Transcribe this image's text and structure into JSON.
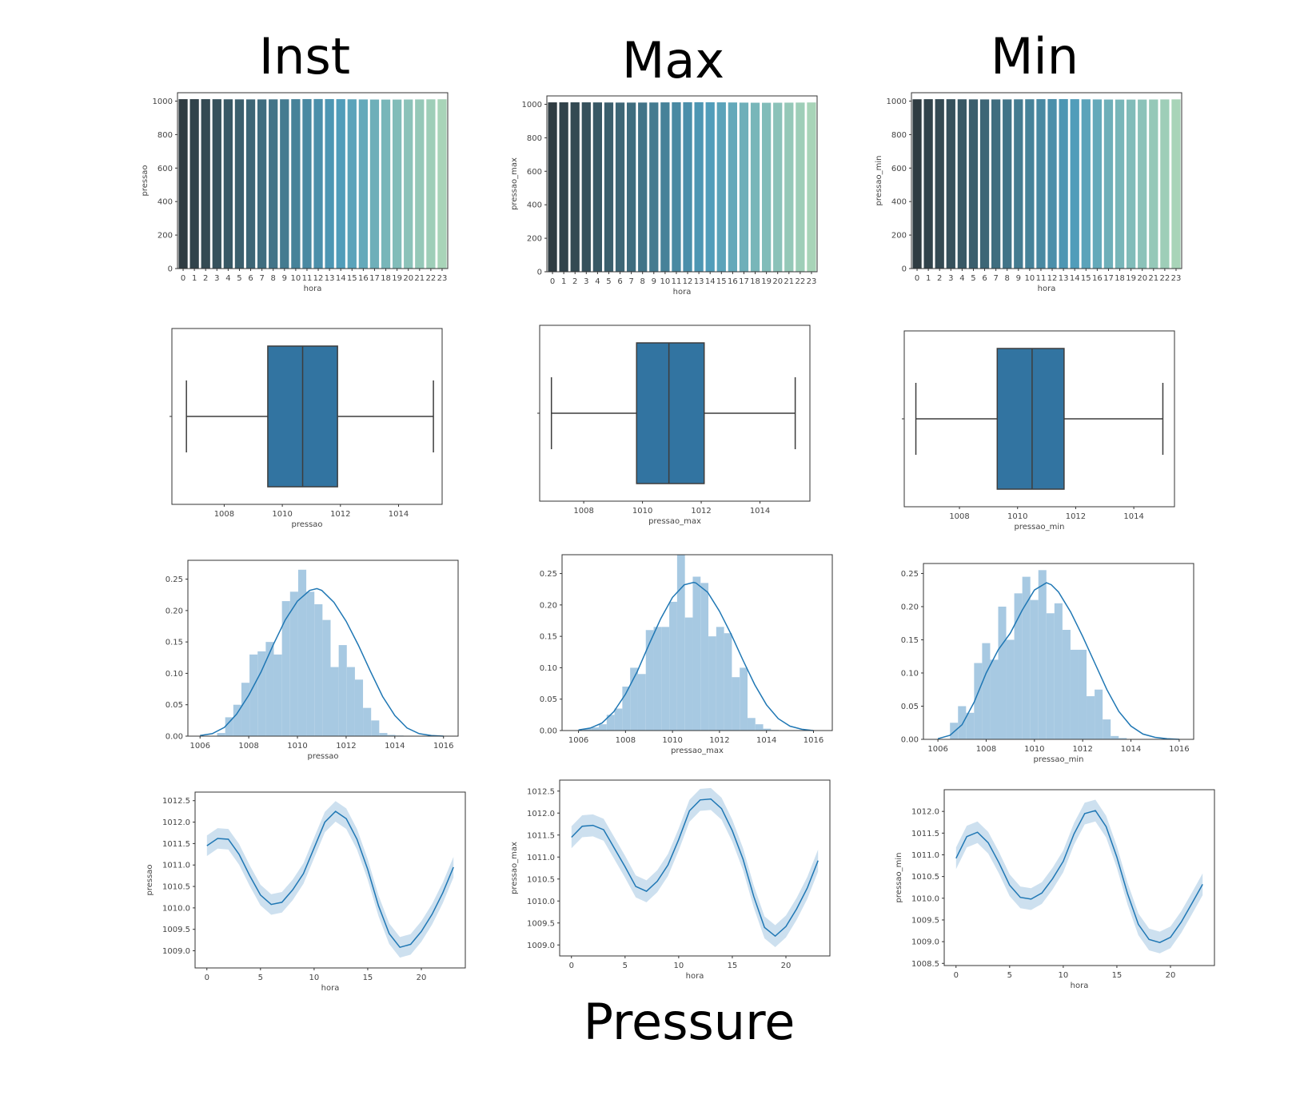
{
  "figure": {
    "column_titles": [
      "Inst",
      "Max",
      "Min"
    ],
    "footer_title": "Pressure"
  },
  "colors": {
    "palette_start": "#2f3c42",
    "palette_mid": "#4f9cba",
    "palette_end": "#a8d4b8",
    "box_fill": "#3274a1",
    "line": "#1f77b4",
    "hist_fill": "#a7c9e2",
    "ci_band": "#bcd5ea",
    "axis": "#333333",
    "tick_text": "#444444"
  },
  "chart_data": [
    {
      "id": "bar-inst",
      "type": "bar",
      "xlabel": "hora",
      "ylabel": "pressao",
      "ylim": [
        0,
        1050
      ],
      "yticks": [
        0,
        200,
        400,
        600,
        800,
        1000
      ],
      "categories": [
        "0",
        "1",
        "2",
        "3",
        "4",
        "5",
        "6",
        "7",
        "8",
        "9",
        "10",
        "11",
        "12",
        "13",
        "14",
        "15",
        "16",
        "17",
        "18",
        "19",
        "20",
        "21",
        "22",
        "23"
      ],
      "values": [
        1011.5,
        1011.6,
        1011.6,
        1011.3,
        1010.7,
        1010.3,
        1010.1,
        1010.1,
        1010.4,
        1010.8,
        1011.5,
        1012.0,
        1012.2,
        1012.0,
        1011.5,
        1010.7,
        1009.9,
        1009.3,
        1009.1,
        1009.1,
        1009.5,
        1009.9,
        1010.4,
        1010.9
      ]
    },
    {
      "id": "bar-max",
      "type": "bar",
      "xlabel": "hora",
      "ylabel": "pressao_max",
      "ylim": [
        0,
        1050
      ],
      "yticks": [
        0,
        200,
        400,
        600,
        800,
        1000
      ],
      "categories": [
        "0",
        "1",
        "2",
        "3",
        "4",
        "5",
        "6",
        "7",
        "8",
        "9",
        "10",
        "11",
        "12",
        "13",
        "14",
        "15",
        "16",
        "17",
        "18",
        "19",
        "20",
        "21",
        "22",
        "23"
      ],
      "values": [
        1011.5,
        1011.7,
        1011.7,
        1011.6,
        1011.2,
        1010.7,
        1010.3,
        1010.2,
        1010.4,
        1010.8,
        1011.4,
        1012.0,
        1012.3,
        1012.3,
        1012.1,
        1011.6,
        1010.9,
        1010.0,
        1009.4,
        1009.2,
        1009.4,
        1009.8,
        1010.3,
        1010.9
      ]
    },
    {
      "id": "bar-min",
      "type": "bar",
      "xlabel": "hora",
      "ylabel": "pressao_min",
      "ylim": [
        0,
        1050
      ],
      "yticks": [
        0,
        200,
        400,
        600,
        800,
        1000
      ],
      "categories": [
        "0",
        "1",
        "2",
        "3",
        "4",
        "5",
        "6",
        "7",
        "8",
        "9",
        "10",
        "11",
        "12",
        "13",
        "14",
        "15",
        "16",
        "17",
        "18",
        "19",
        "20",
        "21",
        "22",
        "23"
      ],
      "values": [
        1010.9,
        1011.4,
        1011.5,
        1011.3,
        1010.8,
        1010.3,
        1010.0,
        1010.0,
        1010.1,
        1010.5,
        1010.9,
        1011.5,
        1012.0,
        1012.0,
        1011.5,
        1010.7,
        1009.9,
        1009.3,
        1009.0,
        1009.0,
        1009.1,
        1009.5,
        1009.9,
        1010.3
      ]
    },
    {
      "id": "box-inst",
      "type": "box",
      "xlabel": "pressao",
      "xlim": [
        1006.2,
        1015.5
      ],
      "xticks": [
        1008,
        1010,
        1012,
        1014
      ],
      "whisker_low": 1006.7,
      "q1": 1009.5,
      "median": 1010.7,
      "q3": 1011.9,
      "whisker_high": 1015.2
    },
    {
      "id": "box-max",
      "type": "box",
      "xlabel": "pressao_max",
      "xlim": [
        1006.5,
        1015.7
      ],
      "xticks": [
        1008,
        1010,
        1012,
        1014
      ],
      "whisker_low": 1006.9,
      "q1": 1009.8,
      "median": 1010.9,
      "q3": 1012.1,
      "whisker_high": 1015.2
    },
    {
      "id": "box-min",
      "type": "box",
      "xlabel": "pressao_min",
      "xlim": [
        1006.1,
        1015.4
      ],
      "xticks": [
        1008,
        1010,
        1012,
        1014
      ],
      "whisker_low": 1006.5,
      "q1": 1009.3,
      "median": 1010.5,
      "q3": 1011.6,
      "whisker_high": 1015.0
    },
    {
      "id": "hist-inst",
      "type": "histogram",
      "xlabel": "pressao",
      "xlim": [
        1005.5,
        1016.6
      ],
      "ylim": [
        0,
        0.28
      ],
      "xticks": [
        1006,
        1008,
        1010,
        1012,
        1014,
        1016
      ],
      "yticks": [
        0.0,
        0.05,
        0.1,
        0.15,
        0.2,
        0.25
      ],
      "bins": {
        "start": 1006.7,
        "width": 0.333,
        "counts": [
          0.005,
          0.03,
          0.05,
          0.085,
          0.13,
          0.135,
          0.15,
          0.13,
          0.215,
          0.23,
          0.265,
          0.23,
          0.21,
          0.185,
          0.11,
          0.145,
          0.11,
          0.09,
          0.045,
          0.025,
          0.005,
          0.002,
          0.001,
          0.0,
          0.0,
          0.0
        ]
      },
      "kde": {
        "x": [
          1006,
          1006.5,
          1007,
          1007.5,
          1008,
          1008.5,
          1009,
          1009.5,
          1010,
          1010.5,
          1010.8,
          1011,
          1011.5,
          1012,
          1012.5,
          1013,
          1013.5,
          1014,
          1014.5,
          1015,
          1015.5,
          1016
        ],
        "y": [
          0.001,
          0.004,
          0.014,
          0.035,
          0.065,
          0.102,
          0.145,
          0.185,
          0.215,
          0.232,
          0.235,
          0.232,
          0.213,
          0.183,
          0.145,
          0.103,
          0.063,
          0.033,
          0.013,
          0.004,
          0.001,
          0.0
        ]
      }
    },
    {
      "id": "hist-max",
      "type": "histogram",
      "xlabel": "pressao_max",
      "xlim": [
        1005.3,
        1016.8
      ],
      "ylim": [
        0,
        0.28
      ],
      "xticks": [
        1006,
        1008,
        1010,
        1012,
        1014,
        1016
      ],
      "yticks": [
        0.0,
        0.05,
        0.1,
        0.15,
        0.2,
        0.25
      ],
      "bins": {
        "start": 1006.2,
        "width": 0.333,
        "counts": [
          0.003,
          0.005,
          0.01,
          0.025,
          0.035,
          0.07,
          0.1,
          0.09,
          0.16,
          0.165,
          0.165,
          0.205,
          0.28,
          0.18,
          0.245,
          0.235,
          0.15,
          0.165,
          0.155,
          0.085,
          0.1,
          0.02,
          0.01,
          0.003,
          0.001,
          0.0,
          0.0,
          0.0
        ]
      },
      "kde": {
        "x": [
          1006,
          1006.5,
          1007,
          1007.5,
          1008,
          1008.5,
          1009,
          1009.5,
          1010,
          1010.5,
          1010.9,
          1011,
          1011.5,
          1012,
          1012.5,
          1013,
          1013.5,
          1014,
          1014.5,
          1015,
          1015.5,
          1016
        ],
        "y": [
          0.001,
          0.004,
          0.012,
          0.03,
          0.058,
          0.094,
          0.137,
          0.178,
          0.212,
          0.232,
          0.236,
          0.235,
          0.22,
          0.19,
          0.153,
          0.112,
          0.073,
          0.041,
          0.019,
          0.007,
          0.002,
          0.0
        ]
      }
    },
    {
      "id": "hist-min",
      "type": "histogram",
      "xlabel": "pressao_min",
      "xlim": [
        1005.4,
        1016.6
      ],
      "ylim": [
        0,
        0.265
      ],
      "xticks": [
        1006,
        1008,
        1010,
        1012,
        1014,
        1016
      ],
      "yticks": [
        0.0,
        0.05,
        0.1,
        0.15,
        0.2,
        0.25
      ],
      "bins": {
        "start": 1006.5,
        "width": 0.333,
        "counts": [
          0.025,
          0.05,
          0.04,
          0.115,
          0.145,
          0.12,
          0.2,
          0.15,
          0.22,
          0.245,
          0.21,
          0.255,
          0.19,
          0.205,
          0.165,
          0.135,
          0.135,
          0.065,
          0.075,
          0.03,
          0.005,
          0.002,
          0.0,
          0.0,
          0.0,
          0.0
        ]
      },
      "kde": {
        "x": [
          1006,
          1006.5,
          1007,
          1007.5,
          1008,
          1008.5,
          1009,
          1009.5,
          1010,
          1010.5,
          1010.7,
          1011,
          1011.5,
          1012,
          1012.5,
          1013,
          1013.5,
          1014,
          1014.5,
          1015,
          1015.5,
          1016
        ],
        "y": [
          0.001,
          0.006,
          0.022,
          0.056,
          0.1,
          0.135,
          0.16,
          0.195,
          0.225,
          0.236,
          0.233,
          0.222,
          0.192,
          0.155,
          0.115,
          0.075,
          0.042,
          0.02,
          0.008,
          0.003,
          0.001,
          0.0
        ]
      }
    },
    {
      "id": "line-inst",
      "type": "line",
      "xlabel": "hora",
      "ylabel": "pressao",
      "xlim": [
        -1.1,
        24.1
      ],
      "ylim": [
        1008.6,
        1012.7
      ],
      "xticks": [
        0,
        5,
        10,
        15,
        20
      ],
      "yticks": [
        1009.0,
        1009.5,
        1010.0,
        1010.5,
        1011.0,
        1011.5,
        1012.0,
        1012.5
      ],
      "x": [
        0,
        1,
        2,
        3,
        4,
        5,
        6,
        7,
        8,
        9,
        10,
        11,
        12,
        13,
        14,
        15,
        16,
        17,
        18,
        19,
        20,
        21,
        22,
        23
      ],
      "y": [
        1011.45,
        1011.62,
        1011.6,
        1011.25,
        1010.75,
        1010.3,
        1010.08,
        1010.13,
        1010.42,
        1010.8,
        1011.4,
        1012.0,
        1012.25,
        1012.08,
        1011.6,
        1010.9,
        1010.05,
        1009.4,
        1009.08,
        1009.15,
        1009.45,
        1009.85,
        1010.35,
        1010.95
      ],
      "ci": 0.24
    },
    {
      "id": "line-max",
      "type": "line",
      "xlabel": "hora",
      "ylabel": "pressao_max",
      "xlim": [
        -1.1,
        24.1
      ],
      "ylim": [
        1008.75,
        1012.75
      ],
      "xticks": [
        0,
        5,
        10,
        15,
        20
      ],
      "yticks": [
        1009.0,
        1009.5,
        1010.0,
        1010.5,
        1011.0,
        1011.5,
        1012.0,
        1012.5
      ],
      "x": [
        0,
        1,
        2,
        3,
        4,
        5,
        6,
        7,
        8,
        9,
        10,
        11,
        12,
        13,
        14,
        15,
        16,
        17,
        18,
        19,
        20,
        21,
        22,
        23
      ],
      "y": [
        1011.45,
        1011.7,
        1011.72,
        1011.62,
        1011.2,
        1010.78,
        1010.33,
        1010.22,
        1010.45,
        1010.82,
        1011.4,
        1012.05,
        1012.3,
        1012.32,
        1012.1,
        1011.6,
        1010.95,
        1010.1,
        1009.4,
        1009.2,
        1009.42,
        1009.82,
        1010.3,
        1010.92
      ],
      "ci": 0.25
    },
    {
      "id": "line-min",
      "type": "line",
      "xlabel": "hora",
      "ylabel": "pressao_min",
      "xlim": [
        -1.1,
        24.1
      ],
      "ylim": [
        1008.45,
        1012.5
      ],
      "xticks": [
        0,
        5,
        10,
        15,
        20
      ],
      "yticks": [
        1008.5,
        1009.0,
        1009.5,
        1010.0,
        1010.5,
        1011.0,
        1011.5,
        1012.0
      ],
      "x": [
        0,
        1,
        2,
        3,
        4,
        5,
        6,
        7,
        8,
        9,
        10,
        11,
        12,
        13,
        14,
        15,
        16,
        17,
        18,
        19,
        20,
        21,
        22,
        23
      ],
      "y": [
        1010.92,
        1011.42,
        1011.52,
        1011.28,
        1010.82,
        1010.3,
        1010.02,
        1009.98,
        1010.12,
        1010.45,
        1010.85,
        1011.48,
        1011.95,
        1012.02,
        1011.65,
        1010.95,
        1010.1,
        1009.4,
        1009.05,
        1008.98,
        1009.1,
        1009.45,
        1009.88,
        1010.32
      ],
      "ci": 0.25
    }
  ]
}
